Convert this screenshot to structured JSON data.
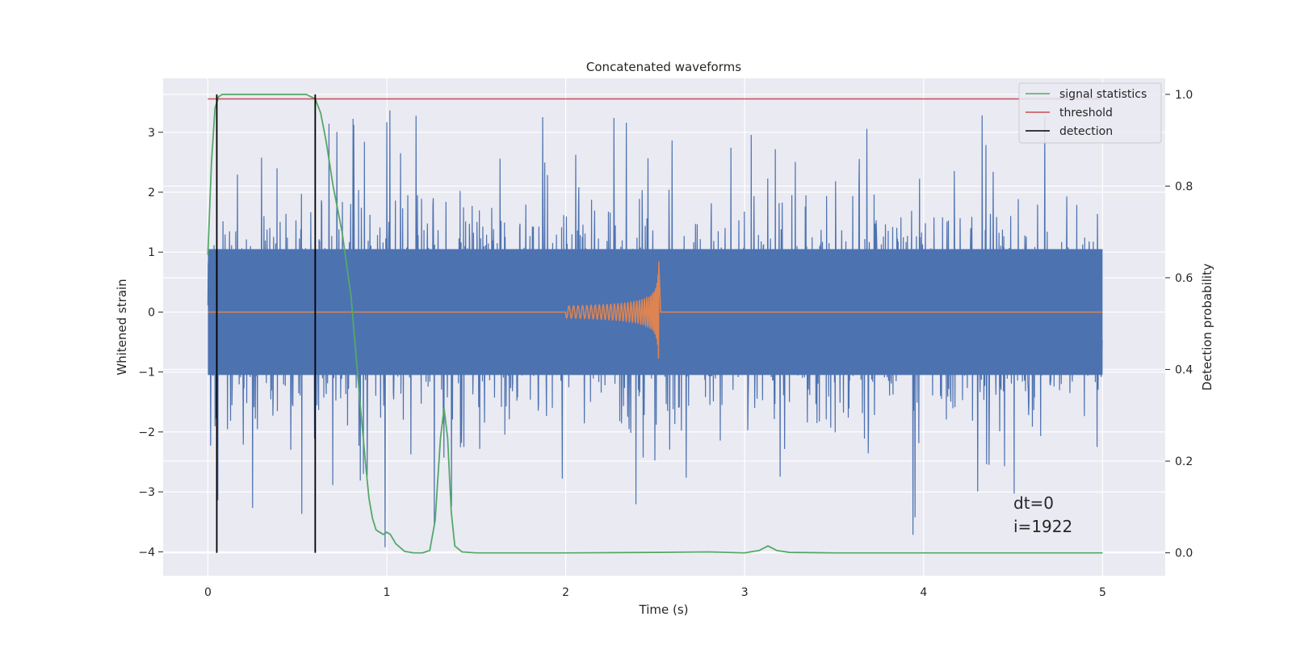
{
  "chart_data": {
    "type": "line",
    "title": "Concatenated waveforms",
    "xlabel": "Time (s)",
    "ylabel": "Whitened strain",
    "y2label": "Detection probability",
    "xlim": [
      -0.25,
      5.35
    ],
    "ylim": [
      -4.4,
      3.9
    ],
    "y2lim": [
      -0.05,
      1.035
    ],
    "xticks": [
      0,
      1,
      2,
      3,
      4,
      5
    ],
    "yticks": [
      -4,
      -3,
      -2,
      -1,
      0,
      1,
      2,
      3
    ],
    "y2ticks": [
      0.0,
      0.2,
      0.4,
      0.6,
      0.8,
      1.0
    ],
    "grid": true,
    "legend_position": "upper-right",
    "legend": [
      {
        "label": "signal statistics",
        "color": "#55a868"
      },
      {
        "label": "threshold",
        "color": "#c44e52"
      },
      {
        "label": "detection",
        "color": "#000000"
      }
    ],
    "colors": {
      "noise": "#4c72b0",
      "signal": "#dd8452",
      "statistics": "#55a868",
      "threshold": "#c44e52",
      "detection": "#000000",
      "background": "#eaeaf2"
    },
    "series": [
      {
        "name": "signal statistics",
        "axis": "right",
        "x": [
          0.0,
          0.02,
          0.04,
          0.06,
          0.08,
          0.1,
          0.15,
          0.2,
          0.3,
          0.4,
          0.5,
          0.55,
          0.6,
          0.63,
          0.66,
          0.7,
          0.75,
          0.8,
          0.85,
          0.88,
          0.9,
          0.92,
          0.94,
          0.96,
          0.98,
          1.0,
          1.02,
          1.05,
          1.1,
          1.15,
          1.2,
          1.24,
          1.27,
          1.3,
          1.32,
          1.34,
          1.36,
          1.38,
          1.42,
          1.5,
          1.7,
          2.0,
          2.5,
          2.8,
          3.0,
          3.08,
          3.13,
          3.18,
          3.25,
          3.5,
          4.0,
          4.5,
          5.0
        ],
        "y": [
          0.65,
          0.85,
          0.97,
          0.995,
          1.0,
          1.0,
          1.0,
          1.0,
          1.0,
          1.0,
          1.0,
          1.0,
          0.99,
          0.96,
          0.9,
          0.8,
          0.7,
          0.56,
          0.33,
          0.2,
          0.12,
          0.075,
          0.05,
          0.045,
          0.04,
          0.045,
          0.04,
          0.02,
          0.003,
          0.0,
          0.0,
          0.005,
          0.07,
          0.25,
          0.315,
          0.25,
          0.09,
          0.015,
          0.002,
          0.0,
          0.0,
          0.0,
          0.001,
          0.002,
          0.0,
          0.005,
          0.015,
          0.005,
          0.001,
          0.0,
          0.0,
          0.0,
          0.0
        ]
      },
      {
        "name": "threshold",
        "axis": "right",
        "x": [
          0.0,
          5.0
        ],
        "y": [
          0.99,
          0.99
        ]
      },
      {
        "name": "detection",
        "axis": "right",
        "type": "vline",
        "x": [
          0.05,
          0.6
        ],
        "y_range": [
          0.0,
          1.0
        ]
      }
    ],
    "noise_trace": {
      "x_range": [
        0.0,
        5.0
      ],
      "core_amplitude": 1.05,
      "spike_max": 3.4,
      "spike_min": -4.0
    },
    "signal_trace": {
      "x_range": [
        2.0,
        2.52
      ],
      "peak_amplitude": 0.85
    },
    "annotations": [
      "dt=0",
      "i=1922"
    ]
  }
}
